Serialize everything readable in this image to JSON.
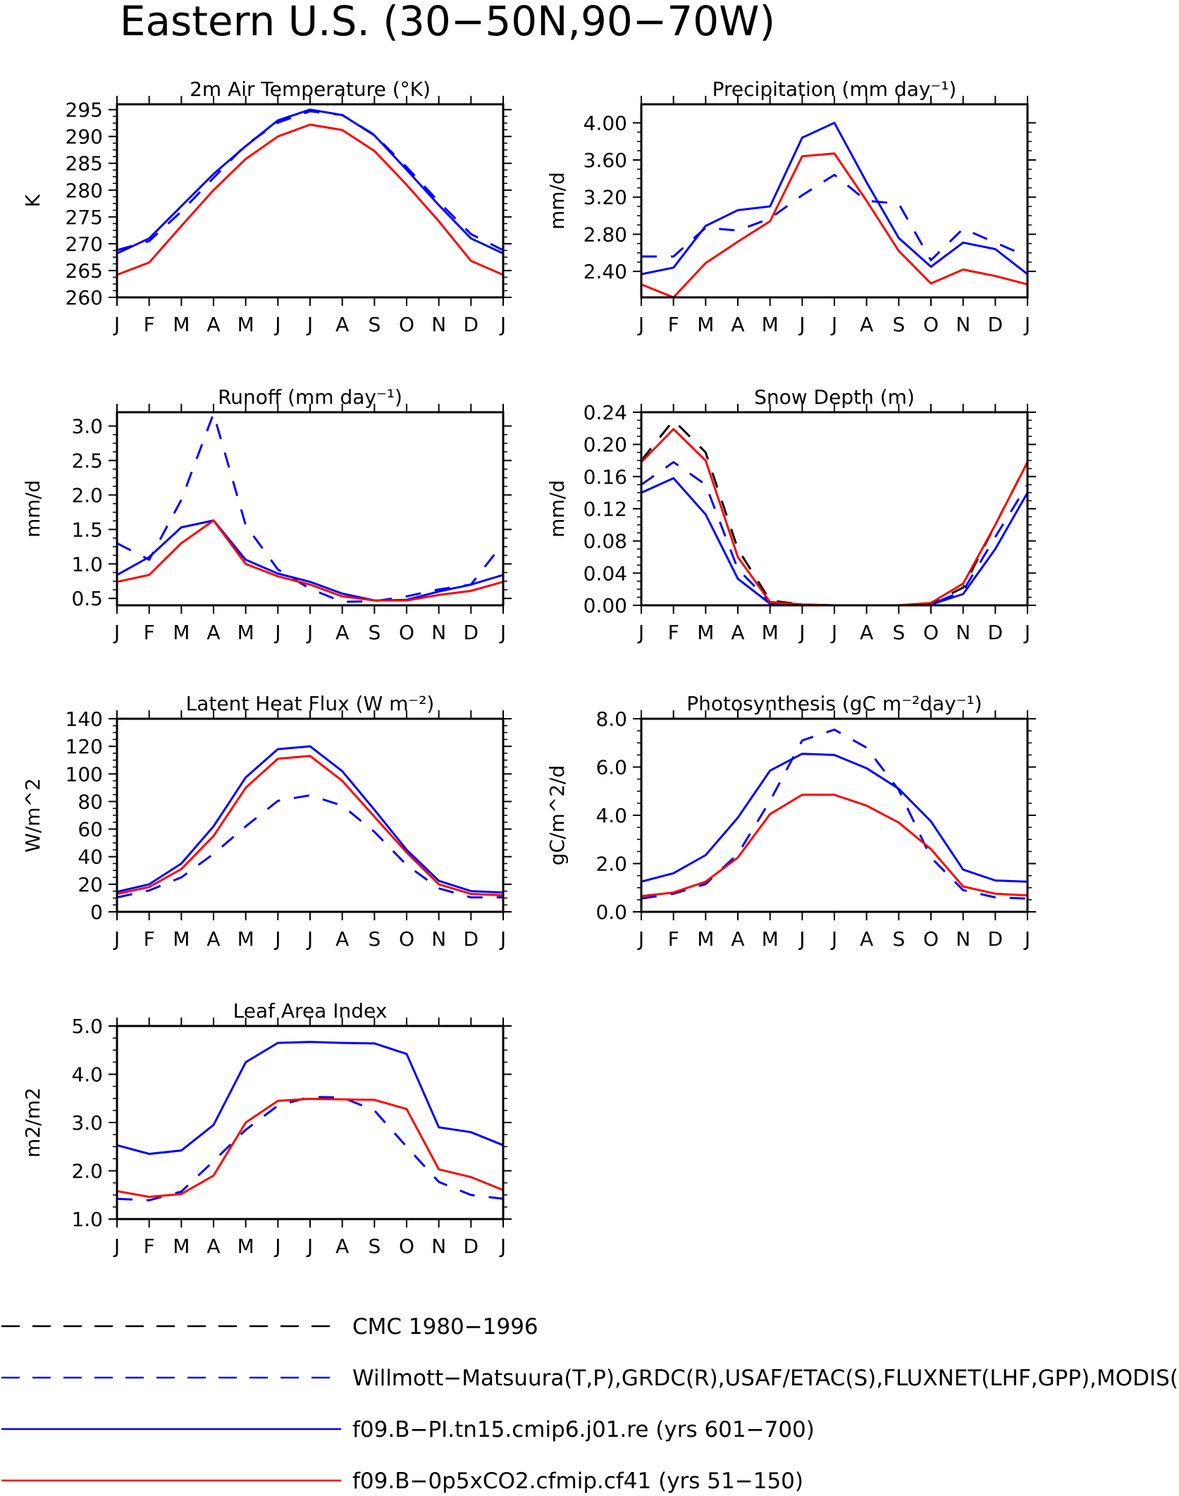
{
  "title": "Eastern U.S. (30−50N,90−70W)",
  "months": [
    "J",
    "F",
    "M",
    "A",
    "M",
    "J",
    "J",
    "A",
    "S",
    "O",
    "N",
    "D",
    "J"
  ],
  "styles": {
    "cmc": {
      "color": "#000000",
      "dash": true
    },
    "obs": {
      "color": "#0000ff",
      "dash": true
    },
    "model": {
      "color": "#0000ff",
      "dash": false
    },
    "co2": {
      "color": "#ff0000",
      "dash": false
    }
  },
  "legend": [
    {
      "key": "cmc",
      "label": "CMC 1980−1996"
    },
    {
      "key": "obs",
      "label": "Willmott−Matsuura(T,P),GRDC(R),USAF/ETAC(S),FLUXNET(LHF,GPP),MODIS(L"
    },
    {
      "key": "model",
      "label": "f09.B−PI.tn15.cmip6.j01.re (yrs 601−700)"
    },
    {
      "key": "co2",
      "label": "f09.B−0p5xCO2.cfmip.cf41 (yrs 51−150)"
    }
  ],
  "chart_data": [
    {
      "type": "line",
      "title": "2m Air Temperature (°K)",
      "ylabel": "K",
      "ylim": [
        260,
        296
      ],
      "yticks": [
        260,
        265,
        270,
        275,
        280,
        285,
        290,
        295
      ],
      "tick_labels": [
        "260",
        "265",
        "270",
        "275",
        "280",
        "285",
        "290",
        "295"
      ],
      "series": [
        {
          "key": "obs",
          "values": [
            268.8,
            270.5,
            276,
            282.3,
            288.4,
            292.6,
            294.7,
            294,
            290.3,
            284.3,
            277.8,
            271.8,
            268.8
          ]
        },
        {
          "key": "model",
          "values": [
            268.2,
            271,
            277,
            283,
            288.2,
            293,
            295,
            294,
            290.2,
            283.8,
            277.2,
            271,
            268.2
          ]
        },
        {
          "key": "co2",
          "values": [
            264.2,
            266.5,
            273.3,
            280,
            285.8,
            290,
            292.2,
            291.2,
            287.3,
            281,
            274.2,
            266.8,
            264.2
          ]
        }
      ]
    },
    {
      "type": "line",
      "title": "Precipitation (mm day⁻¹)",
      "ylabel": "mm/d",
      "ylim": [
        2.12,
        4.2
      ],
      "yticks": [
        2.4,
        2.8,
        3.2,
        3.6,
        4.0
      ],
      "tick_labels": [
        "2.40",
        "2.80",
        "3.20",
        "3.60",
        "4.00"
      ],
      "series": [
        {
          "key": "obs",
          "values": [
            2.56,
            2.56,
            2.87,
            2.84,
            2.97,
            3.22,
            3.44,
            3.16,
            3.13,
            2.52,
            2.86,
            2.71,
            2.56
          ]
        },
        {
          "key": "model",
          "values": [
            2.37,
            2.44,
            2.89,
            3.06,
            3.1,
            3.84,
            4.0,
            3.36,
            2.76,
            2.45,
            2.71,
            2.64,
            2.37
          ]
        },
        {
          "key": "co2",
          "values": [
            2.26,
            2.12,
            2.49,
            2.72,
            2.94,
            3.64,
            3.67,
            3.16,
            2.62,
            2.27,
            2.42,
            2.35,
            2.26
          ]
        }
      ]
    },
    {
      "type": "line",
      "title": "Runoff (mm day⁻¹)",
      "ylabel": "mm/d",
      "ylim": [
        0.4,
        3.2
      ],
      "yticks": [
        0.5,
        1.0,
        1.5,
        2.0,
        2.5,
        3.0
      ],
      "tick_labels": [
        "0.5",
        "1.0",
        "1.5",
        "2.0",
        "2.5",
        "3.0"
      ],
      "series": [
        {
          "key": "obs",
          "values": [
            1.3,
            1.06,
            1.93,
            3.18,
            1.56,
            0.92,
            0.64,
            0.45,
            0.46,
            0.53,
            0.63,
            0.7,
            1.3
          ]
        },
        {
          "key": "model",
          "values": [
            0.84,
            1.1,
            1.53,
            1.63,
            1.06,
            0.86,
            0.74,
            0.57,
            0.47,
            0.48,
            0.6,
            0.7,
            0.84
          ]
        },
        {
          "key": "co2",
          "values": [
            0.74,
            0.84,
            1.3,
            1.63,
            1.0,
            0.82,
            0.7,
            0.53,
            0.47,
            0.47,
            0.55,
            0.61,
            0.74
          ]
        }
      ]
    },
    {
      "type": "line",
      "title": "Snow Depth (m)",
      "ylabel": "mm/d",
      "ylim": [
        0,
        0.24
      ],
      "yticks": [
        0,
        0.04,
        0.08,
        0.12,
        0.16,
        0.2,
        0.24
      ],
      "tick_labels": [
        "0.00",
        "0.04",
        "0.08",
        "0.12",
        "0.16",
        "0.20",
        "0.24"
      ],
      "series": [
        {
          "key": "cmc",
          "values": [
            0.18,
            0.23,
            0.19,
            0.07,
            0.006,
            0.001,
            0,
            0,
            0,
            0.002,
            0.022,
            0.1,
            0.178
          ]
        },
        {
          "key": "obs",
          "values": [
            0.15,
            0.178,
            0.15,
            0.045,
            0.004,
            0.001,
            0,
            0,
            0,
            0.001,
            0.018,
            0.085,
            0.15
          ]
        },
        {
          "key": "model",
          "values": [
            0.14,
            0.158,
            0.113,
            0.033,
            0.002,
            0,
            0,
            0,
            0,
            0.001,
            0.014,
            0.07,
            0.14
          ]
        },
        {
          "key": "co2",
          "values": [
            0.178,
            0.219,
            0.18,
            0.06,
            0.004,
            0.001,
            0,
            0,
            0,
            0.003,
            0.027,
            0.1,
            0.178
          ]
        }
      ]
    },
    {
      "type": "line",
      "title": "Latent Heat Flux (W m⁻²)",
      "ylabel": "W/m^2",
      "ylim": [
        0,
        140
      ],
      "yticks": [
        0,
        20,
        40,
        60,
        80,
        100,
        120,
        140
      ],
      "tick_labels": [
        "0",
        "20",
        "40",
        "60",
        "80",
        "100",
        "120",
        "140"
      ],
      "series": [
        {
          "key": "obs",
          "values": [
            10.5,
            15.5,
            25,
            42,
            62,
            80.5,
            84.5,
            77,
            58,
            34,
            17,
            10.5,
            10.5
          ]
        },
        {
          "key": "model",
          "values": [
            14.5,
            20,
            35,
            62,
            97.5,
            118,
            120,
            102,
            74,
            45,
            22.5,
            15,
            14
          ]
        },
        {
          "key": "co2",
          "values": [
            13,
            18,
            31,
            55,
            90,
            111,
            113,
            95,
            69,
            43,
            20,
            13,
            12
          ]
        }
      ]
    },
    {
      "type": "line",
      "title": "Photosynthesis (gC m⁻²day⁻¹)",
      "ylabel": "gC/m^2/d",
      "ylim": [
        0,
        8
      ],
      "yticks": [
        0,
        2,
        4,
        6,
        8
      ],
      "tick_labels": [
        "0.0",
        "2.0",
        "4.0",
        "6.0",
        "8.0"
      ],
      "series": [
        {
          "key": "obs",
          "values": [
            0.55,
            0.75,
            1.15,
            2.4,
            4.6,
            7.1,
            7.55,
            6.8,
            5.05,
            2.25,
            0.9,
            0.6,
            0.55
          ]
        },
        {
          "key": "model",
          "values": [
            1.25,
            1.6,
            2.35,
            3.9,
            5.85,
            6.55,
            6.5,
            5.95,
            5.1,
            3.75,
            1.75,
            1.3,
            1.25
          ]
        },
        {
          "key": "co2",
          "values": [
            0.65,
            0.8,
            1.25,
            2.25,
            4.05,
            4.85,
            4.85,
            4.4,
            3.7,
            2.6,
            1.05,
            0.75,
            0.68
          ]
        }
      ]
    },
    {
      "type": "line",
      "title": "Leaf Area Index",
      "ylabel": "m2/m2",
      "ylim": [
        1,
        5
      ],
      "yticks": [
        1,
        2,
        3,
        4,
        5
      ],
      "tick_labels": [
        "1.0",
        "2.0",
        "3.0",
        "4.0",
        "5.0"
      ],
      "series": [
        {
          "key": "obs",
          "values": [
            1.42,
            1.39,
            1.57,
            2.2,
            2.85,
            3.35,
            3.53,
            3.52,
            3.25,
            2.5,
            1.77,
            1.5,
            1.42
          ]
        },
        {
          "key": "model",
          "values": [
            2.53,
            2.35,
            2.42,
            2.95,
            4.25,
            4.65,
            4.67,
            4.65,
            4.64,
            4.42,
            2.9,
            2.8,
            2.53
          ]
        },
        {
          "key": "co2",
          "values": [
            1.58,
            1.46,
            1.52,
            1.9,
            3.0,
            3.45,
            3.49,
            3.48,
            3.47,
            3.28,
            2.03,
            1.87,
            1.6
          ]
        }
      ]
    }
  ]
}
